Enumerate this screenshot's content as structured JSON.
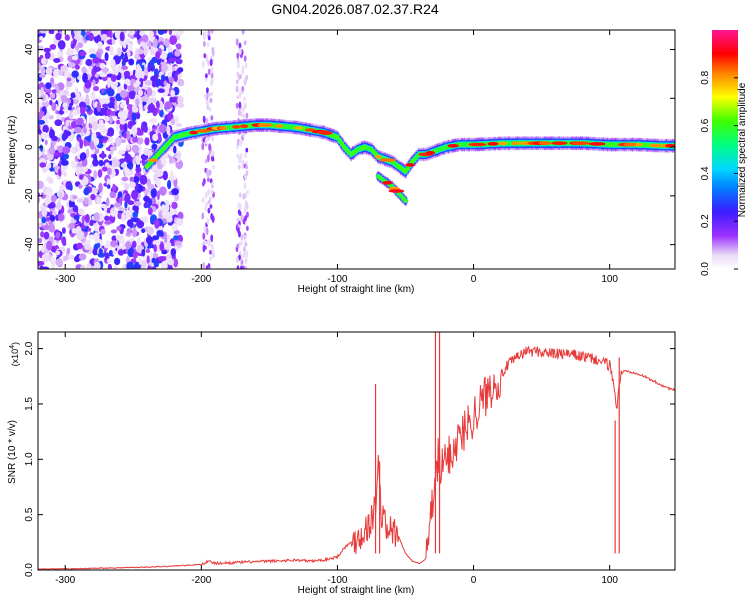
{
  "figure_title": "GN04.2026.087.02.37.R24",
  "chart_data": [
    {
      "type": "heatmap",
      "title": "GN04.2026.087.02.37.R24",
      "xlabel": "Height of straight line (km)",
      "ylabel": "Frequency (Hz)",
      "xlim": [
        -320,
        148
      ],
      "ylim": [
        -50,
        48
      ],
      "xticks": [
        -300,
        -200,
        -100,
        0,
        100
      ],
      "yticks": [
        -40,
        -20,
        0,
        20,
        40
      ],
      "grid": false,
      "colorbar": {
        "label": "Normalized spectral amplitude",
        "range": [
          0,
          1
        ],
        "ticks": [
          0.0,
          0.2,
          0.4,
          0.6,
          0.8
        ],
        "colormap": "rainbow (white-violet-blue-cyan-green-yellow-red-magenta)"
      },
      "ridge": {
        "description": "dominant frequency track (Hz) vs height (km)",
        "x": [
          -240,
          -230,
          -220,
          -210,
          -200,
          -190,
          -180,
          -170,
          -160,
          -150,
          -140,
          -130,
          -120,
          -110,
          -100,
          -95,
          -90,
          -85,
          -80,
          -75,
          -70,
          -65,
          -60,
          -55,
          -50,
          -45,
          -40,
          -35,
          -30,
          -25,
          -20,
          -15,
          -10,
          -5,
          0,
          10,
          20,
          40,
          60,
          80,
          100,
          120,
          140,
          148
        ],
        "y": [
          -8,
          -2,
          4,
          5.5,
          6.5,
          7.5,
          8,
          8.5,
          9,
          9,
          8.5,
          8,
          7,
          6,
          4,
          0,
          -3,
          -1,
          0,
          -1,
          -4,
          -5,
          -6,
          -8,
          -10,
          -6,
          -3,
          -3,
          -2,
          -1,
          0,
          0.5,
          1,
          1,
          1,
          1.2,
          1.5,
          1.6,
          1.6,
          1.6,
          1,
          1,
          0.5,
          0.5
        ],
        "branch": {
          "x": [
            -70,
            -65,
            -60,
            -55,
            -50
          ],
          "y": [
            -12,
            -14,
            -16,
            -19,
            -22
          ]
        }
      },
      "noise_region_x": [
        -320,
        -215
      ],
      "noise_streaks_x": [
        -195,
        -170
      ]
    },
    {
      "type": "line",
      "title": "",
      "xlabel": "Height of straight line (km)",
      "ylabel": "SNR (10 * v/v)",
      "yscale_label": "(x10",
      "yscale_exponent": "4",
      "xlim": [
        -320,
        148
      ],
      "ylim": [
        0,
        2.15
      ],
      "xticks": [
        -300,
        -200,
        -100,
        0,
        100
      ],
      "yticks": [
        0.0,
        0.5,
        1.0,
        1.5,
        2.0
      ],
      "color": "#e83a3a",
      "grid": false,
      "series": [
        {
          "name": "SNR",
          "x": [
            -320,
            -300,
            -260,
            -230,
            -200,
            -195,
            -190,
            -170,
            -150,
            -130,
            -120,
            -110,
            -100,
            -95,
            -90,
            -85,
            -80,
            -75,
            -72,
            -70,
            -68,
            -65,
            -60,
            -55,
            -50,
            -45,
            -40,
            -35,
            -32,
            -30,
            -28,
            -26,
            -24,
            -20,
            -15,
            -10,
            -5,
            0,
            5,
            10,
            15,
            20,
            25,
            30,
            35,
            40,
            50,
            60,
            70,
            80,
            90,
            100,
            103,
            105,
            108,
            110,
            120,
            130,
            140,
            148
          ],
          "y": [
            0.01,
            0.01,
            0.02,
            0.03,
            0.05,
            0.08,
            0.06,
            0.07,
            0.08,
            0.09,
            0.08,
            0.09,
            0.12,
            0.2,
            0.25,
            0.3,
            0.35,
            0.45,
            0.6,
            0.95,
            0.55,
            0.4,
            0.35,
            0.3,
            0.15,
            0.08,
            0.06,
            0.1,
            0.4,
            0.6,
            0.8,
            1.0,
            0.9,
            1.0,
            1.1,
            1.2,
            1.3,
            1.4,
            1.5,
            1.6,
            1.7,
            1.75,
            1.85,
            1.9,
            1.95,
            1.98,
            1.97,
            1.95,
            1.95,
            1.93,
            1.9,
            1.85,
            1.7,
            1.45,
            1.75,
            1.8,
            1.78,
            1.72,
            1.66,
            1.62
          ]
        }
      ],
      "spikes": [
        {
          "x": -72,
          "y": 1.68
        },
        {
          "x": -69,
          "y": 0.98
        },
        {
          "x": -28,
          "y": 2.15
        },
        {
          "x": -25,
          "y": 2.15
        },
        {
          "x": 104,
          "y": 1.35
        },
        {
          "x": 107,
          "y": 1.92
        }
      ]
    }
  ]
}
